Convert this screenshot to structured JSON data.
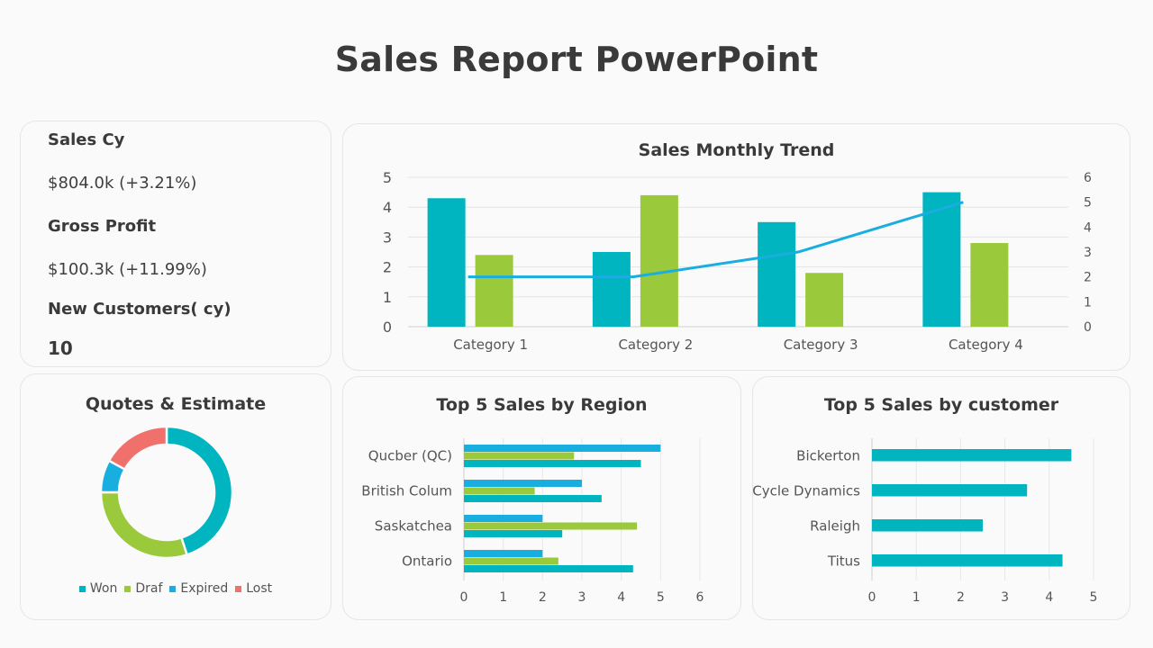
{
  "page_title": "Sales Report PowerPoint",
  "colors": {
    "teal": "#00b5c0",
    "green": "#9ac93b",
    "blue": "#19aee0",
    "red": "#f0716c",
    "line": "#19aee0"
  },
  "kpis": {
    "sales_label": "Sales Cy",
    "sales_value": "$804.0k (+3.21%)",
    "profit_label": "Gross Profit",
    "profit_value": "$100.3k (+11.99%)",
    "customers_label": "New Customers( cy)",
    "customers_value": "10"
  },
  "chart_data": [
    {
      "id": "monthly",
      "type": "bar",
      "title": "Sales Monthly Trend",
      "categories": [
        "Category 1",
        "Category 2",
        "Category 3",
        "Category 4"
      ],
      "series": [
        {
          "type": "bar",
          "values": [
            4.3,
            2.5,
            3.5,
            4.5
          ],
          "color": "#00b5c0"
        },
        {
          "type": "bar",
          "values": [
            2.4,
            4.4,
            1.8,
            2.8
          ],
          "color": "#9ac93b"
        },
        {
          "type": "line",
          "axis": "secondary",
          "values": [
            2.0,
            2.0,
            3.0,
            5.0
          ],
          "color": "#19aee0"
        }
      ],
      "ylim": [
        0,
        5
      ],
      "yticks": [
        "0",
        "1",
        "2",
        "3",
        "4",
        "5"
      ],
      "y2lim": [
        0,
        6
      ],
      "y2ticks": [
        "0",
        "1",
        "2",
        "3",
        "4",
        "5",
        "6"
      ],
      "grid": true
    },
    {
      "id": "quotes",
      "type": "pie",
      "title": "Quotes & Estimate",
      "labels": [
        "Won",
        "Draf",
        "Expired",
        "Lost"
      ],
      "values": [
        45,
        30,
        8,
        17
      ],
      "colors": [
        "#00b5c0",
        "#9ac93b",
        "#19aee0",
        "#f0716c"
      ],
      "legend": "bottom"
    },
    {
      "id": "region",
      "type": "bar",
      "orientation": "horizontal",
      "title": "Top 5 Sales by Region",
      "categories": [
        "Qucber (QC)",
        "British Colum",
        "Saskatchea",
        "Ontario"
      ],
      "series": [
        {
          "values": [
            5.0,
            3.0,
            2.0,
            2.0
          ],
          "color": "#19aee0"
        },
        {
          "values": [
            2.8,
            1.8,
            4.4,
            2.4
          ],
          "color": "#9ac93b"
        },
        {
          "values": [
            4.5,
            3.5,
            2.5,
            4.3
          ],
          "color": "#00b5c0"
        }
      ],
      "xlim": [
        0,
        6
      ],
      "xticks": [
        "0",
        "1",
        "2",
        "3",
        "4",
        "5",
        "6"
      ],
      "grid": true
    },
    {
      "id": "customer",
      "type": "bar",
      "orientation": "horizontal",
      "title": "Top 5 Sales by customer",
      "categories": [
        "Bickerton",
        "Cycle Dynamics",
        "Raleigh",
        "Titus"
      ],
      "series": [
        {
          "values": [
            4.5,
            3.5,
            2.5,
            4.3
          ],
          "color": "#00b5c0"
        }
      ],
      "xlim": [
        0,
        5
      ],
      "xticks": [
        "0",
        "1",
        "2",
        "3",
        "4",
        "5"
      ],
      "grid": true
    }
  ]
}
